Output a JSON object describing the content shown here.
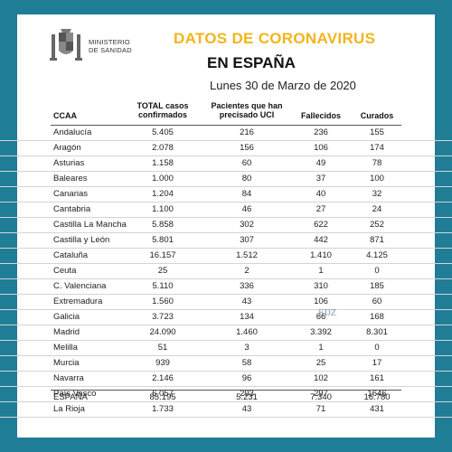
{
  "header": {
    "ministry_line1": "MINISTERIO",
    "ministry_line2": "DE SANIDAD",
    "title_line1": "DATOS DE CORONAVIRUS",
    "title_line2": "EN ESPAÑA",
    "date": "Lunes 30 de Marzo de 2020"
  },
  "table": {
    "columns": {
      "ccaa": "CCAA",
      "casos_1": "TOTAL casos",
      "casos_2": "confirmados",
      "uci_1": "Pacientes que han",
      "uci_2": "precisado UCI",
      "fallecidos": "Fallecidos",
      "curados": "Curados"
    },
    "rows": [
      {
        "ccaa": "Andalucía",
        "casos": "5.405",
        "uci": "216",
        "fallecidos": "236",
        "curados": "155"
      },
      {
        "ccaa": "Aragón",
        "casos": "2.078",
        "uci": "156",
        "fallecidos": "106",
        "curados": "174"
      },
      {
        "ccaa": "Asturias",
        "casos": "1.158",
        "uci": "60",
        "fallecidos": "49",
        "curados": "78"
      },
      {
        "ccaa": "Baleares",
        "casos": "1.000",
        "uci": "80",
        "fallecidos": "37",
        "curados": "100"
      },
      {
        "ccaa": "Canarias",
        "casos": "1.204",
        "uci": "84",
        "fallecidos": "40",
        "curados": "32"
      },
      {
        "ccaa": "Cantabria",
        "casos": "1.100",
        "uci": "46",
        "fallecidos": "27",
        "curados": "24"
      },
      {
        "ccaa": "Castilla La Mancha",
        "casos": "5.858",
        "uci": "302",
        "fallecidos": "622",
        "curados": "252"
      },
      {
        "ccaa": "Castilla y León",
        "casos": "5.801",
        "uci": "307",
        "fallecidos": "442",
        "curados": "871"
      },
      {
        "ccaa": "Cataluña",
        "casos": "16.157",
        "uci": "1.512",
        "fallecidos": "1.410",
        "curados": "4.125"
      },
      {
        "ccaa": "Ceuta",
        "casos": "25",
        "uci": "2",
        "fallecidos": "1",
        "curados": "0"
      },
      {
        "ccaa": "C. Valenciana",
        "casos": "5.110",
        "uci": "336",
        "fallecidos": "310",
        "curados": "185"
      },
      {
        "ccaa": "Extremadura",
        "casos": "1.560",
        "uci": "43",
        "fallecidos": "106",
        "curados": "60"
      },
      {
        "ccaa": "Galicia",
        "casos": "3.723",
        "uci": "134",
        "fallecidos": "66",
        "curados": "168"
      },
      {
        "ccaa": "Madrid",
        "casos": "24.090",
        "uci": "1.460",
        "fallecidos": "3.392",
        "curados": "8.301"
      },
      {
        "ccaa": "Melilla",
        "casos": "51",
        "uci": "3",
        "fallecidos": "1",
        "curados": "0"
      },
      {
        "ccaa": "Murcia",
        "casos": "939",
        "uci": "58",
        "fallecidos": "25",
        "curados": "17"
      },
      {
        "ccaa": "Navarra",
        "casos": "2.146",
        "uci": "96",
        "fallecidos": "102",
        "curados": "161"
      },
      {
        "ccaa": "País Vasco",
        "casos": "6.057",
        "uci": "293",
        "fallecidos": "297",
        "curados": "1646"
      },
      {
        "ccaa": "La Rioja",
        "casos": "1.733",
        "uci": "43",
        "fallecidos": "71",
        "curados": "431"
      }
    ],
    "total": {
      "ccaa": "ESPAÑA",
      "casos": "85.195",
      "uci": "5.231",
      "fallecidos": "7.340",
      "curados": "16.780"
    }
  },
  "watermark": "EDZ",
  "colors": {
    "background": "#1f7d96",
    "title_accent": "#f2b51a"
  }
}
